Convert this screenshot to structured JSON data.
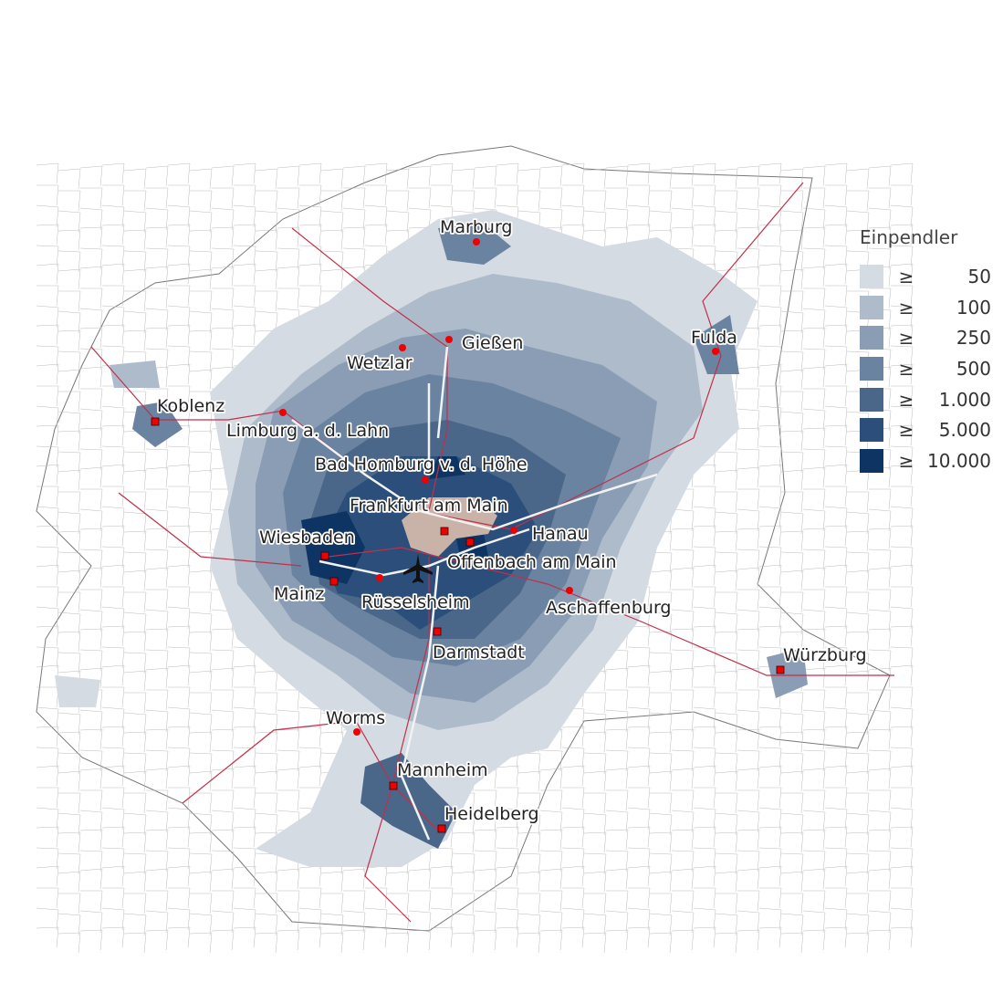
{
  "legend": {
    "title": "Einpendler",
    "symbol": "≥",
    "classes": [
      {
        "value": "50",
        "color": "#d5dbe3"
      },
      {
        "value": "100",
        "color": "#aebbcb"
      },
      {
        "value": "250",
        "color": "#8a9db4"
      },
      {
        "value": "500",
        "color": "#6a83a0"
      },
      {
        "value": "1.000",
        "color": "#4a6789"
      },
      {
        "value": "5.000",
        "color": "#2b4f7a"
      },
      {
        "value": "10.000",
        "color": "#0d3463"
      }
    ]
  },
  "colors": {
    "destination": "#c9b3a8",
    "rail": "#c0304a",
    "motorway": "#eeeeee",
    "city_marker": "#e00000"
  },
  "airport_icon": "airplane-icon",
  "cities": [
    {
      "name": "Marburg",
      "marker": "circle"
    },
    {
      "name": "Gießen",
      "marker": "circle"
    },
    {
      "name": "Wetzlar",
      "marker": "circle"
    },
    {
      "name": "Fulda",
      "marker": "circle"
    },
    {
      "name": "Koblenz",
      "marker": "square"
    },
    {
      "name": "Limburg a. d. Lahn",
      "marker": "circle"
    },
    {
      "name": "Bad Homburg v. d. Höhe",
      "marker": "circle"
    },
    {
      "name": "Frankfurt am Main",
      "marker": "square"
    },
    {
      "name": "Wiesbaden",
      "marker": "square"
    },
    {
      "name": "Hanau",
      "marker": "circle"
    },
    {
      "name": "Offenbach am Main",
      "marker": "square"
    },
    {
      "name": "Mainz",
      "marker": "square"
    },
    {
      "name": "Rüsselsheim",
      "marker": "circle"
    },
    {
      "name": "Aschaffenburg",
      "marker": "circle"
    },
    {
      "name": "Darmstadt",
      "marker": "square"
    },
    {
      "name": "Würzburg",
      "marker": "square"
    },
    {
      "name": "Worms",
      "marker": "circle"
    },
    {
      "name": "Mannheim",
      "marker": "square"
    },
    {
      "name": "Heidelberg",
      "marker": "square"
    }
  ]
}
